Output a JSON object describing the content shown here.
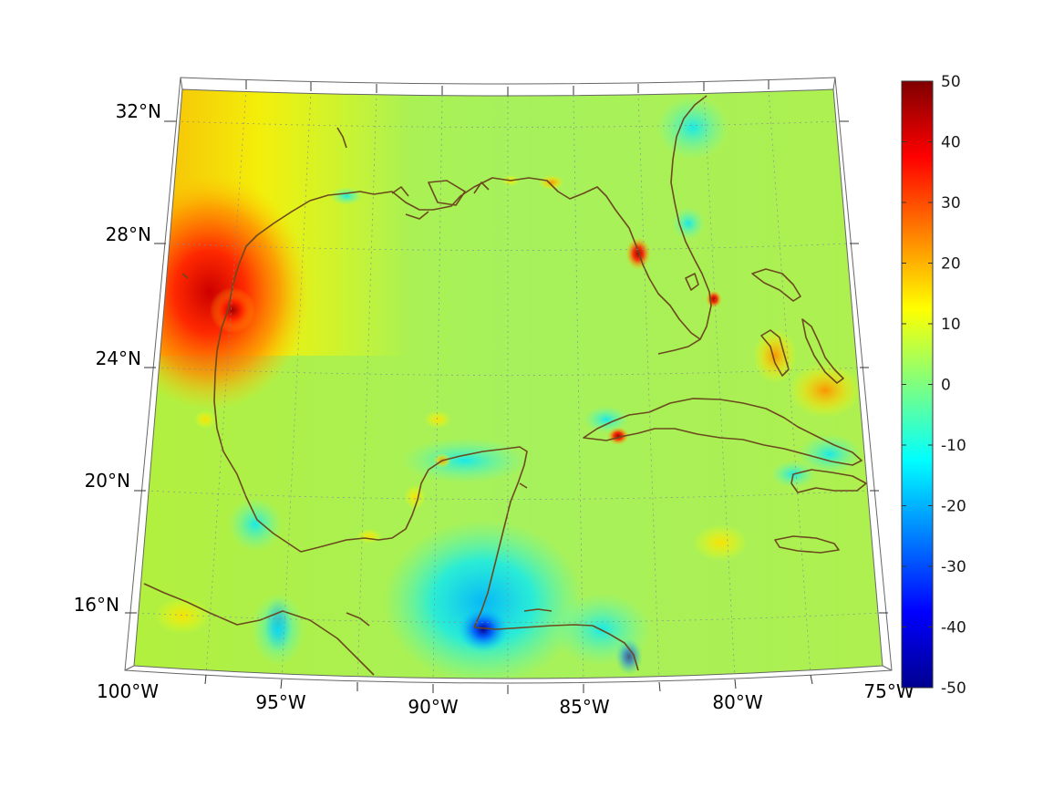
{
  "map": {
    "projection": "conic",
    "lon_range": [
      -100,
      -75
    ],
    "lat_range": [
      14,
      33
    ],
    "lat_ticks": [
      {
        "value": 32,
        "label": "32°N"
      },
      {
        "value": 28,
        "label": "28°N"
      },
      {
        "value": 24,
        "label": "24°N"
      },
      {
        "value": 20,
        "label": "20°N"
      },
      {
        "value": 16,
        "label": "16°N"
      }
    ],
    "lon_ticks": [
      {
        "value": -100,
        "label": "100°W"
      },
      {
        "value": -95,
        "label": "95°W"
      },
      {
        "value": -90,
        "label": "90°W"
      },
      {
        "value": -85,
        "label": "85°W"
      },
      {
        "value": -80,
        "label": "80°W"
      },
      {
        "value": -75,
        "label": "75°W"
      }
    ],
    "graticule": "dotted",
    "coastline_color": "#6b4a1e"
  },
  "colorbar": {
    "colormap": "jet",
    "range": [
      -50,
      50
    ],
    "ticks": [
      "50",
      "40",
      "30",
      "20",
      "10",
      "0",
      "-10",
      "-20",
      "-30",
      "-40",
      "-50"
    ]
  }
}
